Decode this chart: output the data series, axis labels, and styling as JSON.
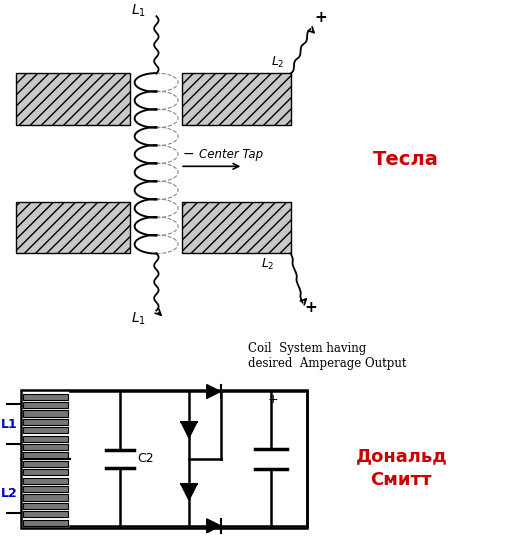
{
  "tesla_label": "Тесла",
  "smith_label": "Дональд\nСмитт",
  "tesla_label_color": "#cc0000",
  "smith_label_color": "#cc0000",
  "L1_color": "#0000cc",
  "L2_color": "#0000cc",
  "bg_color": "#ffffff",
  "line_color": "#000000",
  "tesla_text4": "Coil  System having\ndesired  Amperage Output",
  "C2_label": "C2"
}
